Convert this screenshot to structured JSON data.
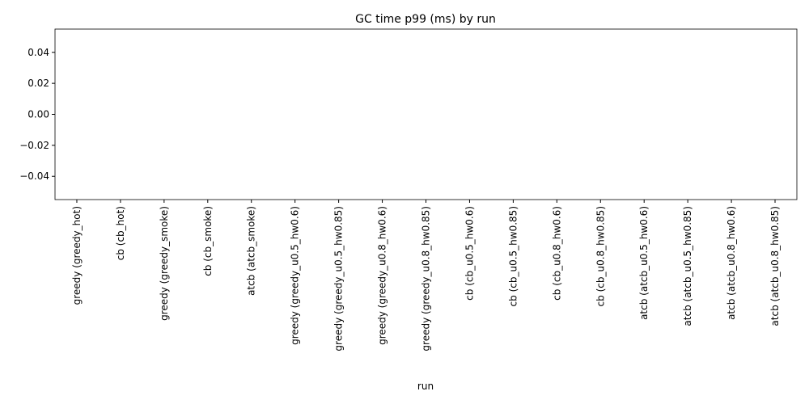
{
  "chart_data": {
    "type": "bar",
    "title": "GC time p99 (ms) by run",
    "x_label": "run",
    "categories": [
      "greedy (greedy_hot)",
      "cb (cb_hot)",
      "greedy (greedy_smoke)",
      "cb (cb_smoke)",
      "atcb (atcb_smoke)",
      "greedy (greedy_u0.5_hw0.6)",
      "greedy (greedy_u0.5_hw0.85)",
      "greedy (greedy_u0.8_hw0.6)",
      "greedy (greedy_u0.8_hw0.85)",
      "cb (cb_u0.5_hw0.6)",
      "cb (cb_u0.5_hw0.85)",
      "cb (cb_u0.8_hw0.6)",
      "cb (cb_u0.8_hw0.85)",
      "atcb (atcb_u0.5_hw0.6)",
      "atcb (atcb_u0.5_hw0.85)",
      "atcb (atcb_u0.8_hw0.6)",
      "atcb (atcb_u0.8_hw0.85)"
    ],
    "values": [
      0,
      0,
      0,
      0,
      0,
      0,
      0,
      0,
      0,
      0,
      0,
      0,
      0,
      0,
      0,
      0,
      0
    ],
    "color": "#1f77b4",
    "ylim": [
      -0.055,
      0.055
    ],
    "yticks": [
      {
        "value": -0.04,
        "label": "−0.04"
      },
      {
        "value": -0.02,
        "label": "−0.02"
      },
      {
        "value": 0,
        "label": "0.00"
      },
      {
        "value": 0.02,
        "label": "0.02"
      },
      {
        "value": 0.04,
        "label": "0.04"
      }
    ],
    "grid": false
  }
}
